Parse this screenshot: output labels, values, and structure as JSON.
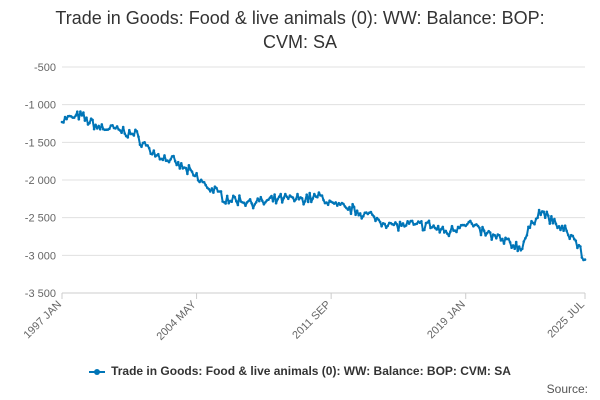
{
  "chart_data": {
    "type": "line",
    "title_line1": "Trade in Goods: Food & live animals (0): WW: Balance: BOP:",
    "title_line2": "CVM: SA",
    "xlabel": "",
    "ylabel": "",
    "ylim": [
      -3500,
      -500
    ],
    "yticks": [
      -500,
      -1000,
      -1500,
      -2000,
      -2500,
      -3000,
      -3500
    ],
    "ytick_labels": [
      "-500",
      "-1 000",
      "-1 500",
      "-2 000",
      "-2 500",
      "-3 000",
      "-3 500"
    ],
    "xticks": [
      "1997 JAN",
      "2004 MAY",
      "2011 SEP",
      "2019 JAN",
      "2025 JUL"
    ],
    "xtick_month_index": [
      0,
      88,
      176,
      264,
      342
    ],
    "grid": "horizontal",
    "series": [
      {
        "name": "Trade in Goods: Food & live animals (0): WW: Balance: BOP: CVM: SA",
        "color": "#0075b7",
        "anchors_month_index": [
          0,
          12,
          24,
          36,
          48,
          60,
          72,
          84,
          96,
          108,
          120,
          132,
          144,
          156,
          168,
          180,
          192,
          204,
          216,
          228,
          240,
          252,
          264,
          276,
          288,
          300,
          312,
          324,
          336,
          342
        ],
        "anchors_value": [
          -1200,
          -1150,
          -1300,
          -1330,
          -1400,
          -1650,
          -1750,
          -1900,
          -2100,
          -2250,
          -2280,
          -2300,
          -2250,
          -2250,
          -2220,
          -2350,
          -2400,
          -2500,
          -2600,
          -2600,
          -2600,
          -2700,
          -2550,
          -2700,
          -2800,
          -2900,
          -2400,
          -2600,
          -2800,
          -3080
        ]
      }
    ]
  },
  "legend_label": "Trade in Goods: Food & live animals (0): WW: Balance: BOP: CVM: SA",
  "source_label": "Source:"
}
